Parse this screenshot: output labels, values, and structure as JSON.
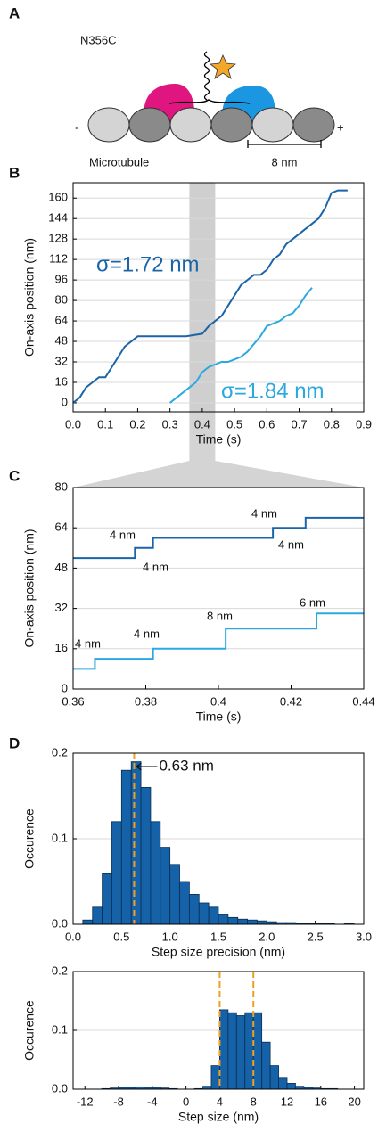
{
  "diagram": {
    "panel": "A",
    "label": "N356C",
    "minus": "-",
    "plus": "+",
    "track_label": "Microtubule",
    "scale_label": "8 nm"
  },
  "chart_data": [
    {
      "type": "line",
      "panel": "B",
      "xlabel": "Time (s)",
      "ylabel": "On-axis position (nm)",
      "xlim": [
        0,
        0.9
      ],
      "ylim": [
        -7,
        172
      ],
      "xticks": [
        {
          "value": 0,
          "label": "0.0"
        },
        0.1,
        0.2,
        0.3,
        0.4,
        0.5,
        0.6,
        0.7,
        0.8,
        0.9
      ],
      "yticks": [
        0,
        16,
        32,
        48,
        64,
        80,
        96,
        112,
        128,
        144,
        160
      ],
      "grid": true,
      "highlight": [
        0.36,
        0.44
      ],
      "annotations": [
        "σ=1.72 nm",
        "σ=1.84 nm"
      ],
      "series": [
        {
          "color": "#1b64a8",
          "x": [
            0.0,
            0.02,
            0.04,
            0.06,
            0.08,
            0.1,
            0.12,
            0.14,
            0.16,
            0.18,
            0.2,
            0.25,
            0.3,
            0.35,
            0.4,
            0.42,
            0.44,
            0.46,
            0.48,
            0.5,
            0.52,
            0.54,
            0.56,
            0.58,
            0.6,
            0.62,
            0.64,
            0.66,
            0.68,
            0.7,
            0.72,
            0.74,
            0.76,
            0.78,
            0.8,
            0.82,
            0.85
          ],
          "values": [
            0,
            4,
            12,
            16,
            20,
            20,
            28,
            36,
            44,
            48,
            52,
            52,
            52,
            52,
            54,
            60,
            64,
            68,
            76,
            84,
            92,
            96,
            100,
            100,
            104,
            112,
            116,
            124,
            128,
            132,
            136,
            140,
            144,
            152,
            164,
            166,
            166
          ]
        },
        {
          "color": "#2ba9df",
          "x": [
            0.3,
            0.32,
            0.34,
            0.36,
            0.38,
            0.4,
            0.42,
            0.44,
            0.46,
            0.48,
            0.5,
            0.52,
            0.54,
            0.56,
            0.58,
            0.6,
            0.62,
            0.64,
            0.66,
            0.68,
            0.7,
            0.72,
            0.74
          ],
          "values": [
            0,
            4,
            8,
            12,
            16,
            24,
            28,
            30,
            32,
            32,
            34,
            36,
            40,
            46,
            52,
            60,
            62,
            64,
            68,
            70,
            76,
            84,
            90
          ]
        }
      ]
    },
    {
      "type": "line",
      "panel": "C",
      "xlabel": "Time (s)",
      "ylabel": "On-axis position (nm)",
      "xlim": [
        0.36,
        0.44
      ],
      "ylim": [
        0,
        80
      ],
      "xticks": [
        0.36,
        0.38,
        0.4,
        0.42,
        0.44
      ],
      "yticks": [
        0,
        16,
        32,
        48,
        64,
        80
      ],
      "grid": true,
      "annotations": [
        "4 nm",
        "4 nm",
        "4 nm",
        "4 nm",
        "4 nm",
        "4 nm",
        "8 nm",
        "6 nm"
      ],
      "series": [
        {
          "color": "#1b64a8",
          "x": [
            0.36,
            0.377,
            0.377,
            0.382,
            0.382,
            0.415,
            0.415,
            0.424,
            0.424,
            0.44
          ],
          "values": [
            52,
            52,
            56,
            56,
            60,
            60,
            64,
            64,
            68,
            68
          ]
        },
        {
          "color": "#2ba9df",
          "x": [
            0.36,
            0.366,
            0.366,
            0.382,
            0.382,
            0.402,
            0.402,
            0.427,
            0.427,
            0.44
          ],
          "values": [
            8,
            8,
            12,
            12,
            16,
            16,
            24,
            24,
            30,
            30
          ]
        }
      ]
    },
    {
      "type": "histogram",
      "panel": "D",
      "xlabel": "Step size precision (nm)",
      "ylabel": "Occurence",
      "xlim": [
        0,
        3
      ],
      "ylim": [
        0,
        0.2
      ],
      "xticks": [
        {
          "value": 0,
          "label": "0.0"
        },
        0.5,
        {
          "value": 1,
          "label": "1.0"
        },
        1.5,
        {
          "value": 2,
          "label": "2.0"
        },
        2.5,
        {
          "value": 3,
          "label": "3.0"
        }
      ],
      "yticks": [
        {
          "value": 0,
          "label": "0.0"
        },
        0.1,
        0.2
      ],
      "grid": true,
      "color": "#1562a8",
      "vline_color": "#f0a020",
      "vlines": [
        {
          "value": 0.63,
          "label": "0.63 nm"
        }
      ],
      "bins": [
        0.1,
        0.2,
        0.3,
        0.4,
        0.5,
        0.6,
        0.7,
        0.8,
        0.9,
        1.0,
        1.1,
        1.2,
        1.3,
        1.4,
        1.5,
        1.6,
        1.7,
        1.8,
        1.9,
        2.0,
        2.1,
        2.2,
        2.3,
        2.4,
        2.5,
        2.6,
        2.7,
        2.8,
        2.9,
        3.0
      ],
      "values": [
        0.005,
        0.02,
        0.06,
        0.12,
        0.18,
        0.19,
        0.16,
        0.12,
        0.09,
        0.07,
        0.05,
        0.035,
        0.025,
        0.02,
        0.012,
        0.008,
        0.006,
        0.005,
        0.004,
        0.003,
        0.002,
        0.002,
        0.001,
        0.001,
        0.001,
        0.001,
        0,
        0.001,
        0
      ]
    },
    {
      "type": "histogram",
      "xlabel": "Step size (nm)",
      "ylabel": "Occurence",
      "xlim": [
        -13.4,
        21.1
      ],
      "ylim": [
        0,
        0.2
      ],
      "xticks": [
        -12,
        -8,
        -4,
        0,
        4,
        8,
        12,
        16,
        20
      ],
      "yticks": [
        {
          "value": 0,
          "label": "0.0"
        },
        0.1,
        0.2
      ],
      "grid": true,
      "color": "#1562a8",
      "vline_color": "#f0a020",
      "vlines": [
        4,
        8
      ],
      "bins": [
        -12,
        -11,
        -10,
        -9,
        -8,
        -7,
        -6,
        -5,
        -4,
        -3,
        -2,
        -1,
        0,
        1,
        2,
        3,
        4,
        5,
        6,
        7,
        8,
        9,
        10,
        11,
        12,
        13,
        14,
        15,
        16,
        17,
        18,
        19,
        20
      ],
      "values": [
        0,
        0,
        0.001,
        0.002,
        0.003,
        0.003,
        0.004,
        0.003,
        0.003,
        0.002,
        0.001,
        0,
        0,
        0.001,
        0.005,
        0.04,
        0.135,
        0.13,
        0.125,
        0.13,
        0.13,
        0.08,
        0.04,
        0.02,
        0.01,
        0.005,
        0.003,
        0.002,
        0.001,
        0.001,
        0,
        0
      ]
    }
  ]
}
